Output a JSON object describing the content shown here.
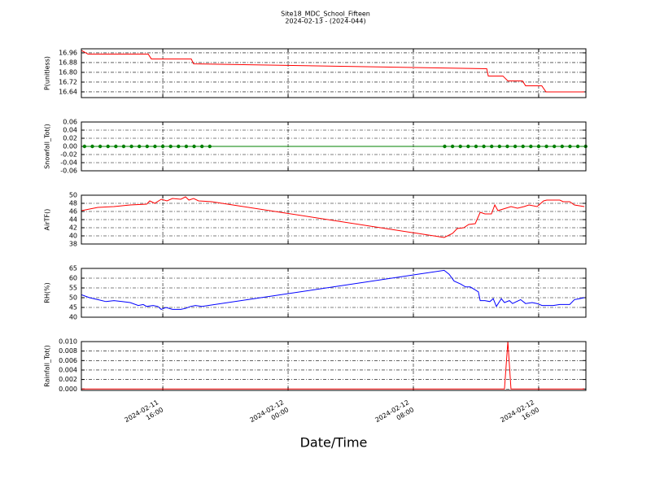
{
  "chart_data": [
    {
      "type": "line",
      "title": "Site18_MDC_School_Fifteen",
      "subtitle": "2024-02-13 - (2024-044)",
      "ylabel": "P(unitless)",
      "color": "#ff0000",
      "grid": true,
      "xlim": [
        "2024-02-11 10:48",
        "2024-02-12 19:01"
      ],
      "xticks": [
        "2024-02-11 16:00",
        "2024-02-12 00:00",
        "2024-02-12 08:00",
        "2024-02-12 16:00"
      ],
      "ylim": [
        16.593,
        16.993
      ],
      "yticks": [
        16.64,
        16.72,
        {
          "value": 16.8,
          "label": "16.80"
        },
        16.88,
        16.96
      ],
      "x": [
        "2024-02-11 10:48",
        "2024-02-11 11:13",
        "2024-02-11 15:04",
        "2024-02-11 15:16",
        "2024-02-11 17:49",
        "2024-02-11 17:58",
        "2024-02-12 12:41",
        "2024-02-12 12:47",
        "2024-02-12 13:43",
        "2024-02-12 14:02",
        "2024-02-12 14:58",
        "2024-02-12 15:10",
        "2024-02-12 16:12",
        "2024-02-12 16:28",
        "2024-02-12 18:55"
      ],
      "values": [
        16.98,
        16.95,
        16.95,
        16.91,
        16.91,
        16.87,
        16.83,
        16.77,
        16.77,
        16.73,
        16.73,
        16.69,
        16.69,
        16.64,
        16.64
      ]
    },
    {
      "type": "line",
      "ylabel": "Snowfall_Tot()",
      "color": "#008000",
      "marker": "o",
      "grid": true,
      "xlim": [
        "2024-02-11 10:48",
        "2024-02-12 19:01"
      ],
      "xticks": [
        "2024-02-11 16:00",
        "2024-02-12 00:00",
        "2024-02-12 08:00",
        "2024-02-12 16:00"
      ],
      "ylim": [
        -0.06,
        0.06
      ],
      "yticks": [
        -0.06,
        -0.04,
        -0.02,
        {
          "value": 0,
          "label": "0.00"
        },
        0.02,
        0.04,
        0.06
      ],
      "x": [
        "2024-02-11 11:00",
        "2024-02-11 11:30",
        "2024-02-11 12:00",
        "2024-02-11 12:30",
        "2024-02-11 13:00",
        "2024-02-11 13:30",
        "2024-02-11 14:00",
        "2024-02-11 14:30",
        "2024-02-11 15:00",
        "2024-02-11 15:30",
        "2024-02-11 16:00",
        "2024-02-11 16:30",
        "2024-02-11 17:00",
        "2024-02-11 17:30",
        "2024-02-11 18:00",
        "2024-02-11 18:30",
        "2024-02-11 19:00",
        "2024-02-12 10:00",
        "2024-02-12 10:30",
        "2024-02-12 11:00",
        "2024-02-12 11:30",
        "2024-02-12 12:00",
        "2024-02-12 12:30",
        "2024-02-12 13:00",
        "2024-02-12 13:30",
        "2024-02-12 14:00",
        "2024-02-12 14:30",
        "2024-02-12 15:00",
        "2024-02-12 15:30",
        "2024-02-12 16:00",
        "2024-02-12 16:30",
        "2024-02-12 17:00",
        "2024-02-12 17:30",
        "2024-02-12 18:00",
        "2024-02-12 18:30",
        "2024-02-12 19:00"
      ],
      "values": [
        0,
        0,
        0,
        0,
        0,
        0,
        0,
        0,
        0,
        0,
        0,
        0,
        0,
        0,
        0,
        0,
        0,
        0,
        0,
        0,
        0,
        0,
        0,
        0,
        0,
        0,
        0,
        0,
        0,
        0,
        0,
        0,
        0,
        0,
        0,
        0
      ]
    },
    {
      "type": "line",
      "ylabel": "AirTF()",
      "color": "#ff0000",
      "grid": true,
      "xlim": [
        "2024-02-11 10:48",
        "2024-02-12 19:01"
      ],
      "xticks": [
        "2024-02-11 16:00",
        "2024-02-12 00:00",
        "2024-02-12 08:00",
        "2024-02-12 16:00"
      ],
      "ylim": [
        38,
        50
      ],
      "yticks": [
        38,
        40,
        42,
        44,
        46,
        48,
        50
      ],
      "x": [
        "2024-02-11 10:48",
        "2024-02-11 11:51",
        "2024-02-11 12:53",
        "2024-02-11 13:55",
        "2024-02-11 14:58",
        "2024-02-11 15:10",
        "2024-02-11 15:29",
        "2024-02-11 15:54",
        "2024-02-11 16:16",
        "2024-02-11 16:37",
        "2024-02-11 17:09",
        "2024-02-11 17:27",
        "2024-02-11 17:40",
        "2024-02-11 17:58",
        "2024-02-11 18:17",
        "2024-02-11 19:07",
        "2024-02-12 09:58",
        "2024-02-12 10:30",
        "2024-02-12 10:48",
        "2024-02-12 11:13",
        "2024-02-12 11:32",
        "2024-02-12 11:57",
        "2024-02-12 12:16",
        "2024-02-12 12:34",
        "2024-02-12 12:59",
        "2024-02-12 13:12",
        "2024-02-12 13:24",
        "2024-02-12 14:14",
        "2024-02-12 14:39",
        "2024-02-12 15:04",
        "2024-02-12 15:23",
        "2024-02-12 15:54",
        "2024-02-12 16:19",
        "2024-02-12 16:31",
        "2024-02-12 17:21",
        "2024-02-12 17:34",
        "2024-02-12 17:59",
        "2024-02-12 18:17",
        "2024-02-12 18:55"
      ],
      "values": [
        46.2,
        47,
        47.2,
        47.6,
        47.8,
        48.6,
        48,
        49,
        48.6,
        49.2,
        49,
        49.6,
        48.8,
        49.2,
        48.6,
        48.4,
        39.6,
        40.6,
        41.8,
        42,
        42.8,
        43,
        45.8,
        45.4,
        45.4,
        47.6,
        46.2,
        47.2,
        46.8,
        47.2,
        47.6,
        47.2,
        48.6,
        48.8,
        48.8,
        48.4,
        48.4,
        47.6,
        47.2
      ]
    },
    {
      "type": "line",
      "ylabel": "RH(%)",
      "color": "#0000ff",
      "grid": true,
      "xlim": [
        "2024-02-11 10:48",
        "2024-02-12 19:01"
      ],
      "xticks": [
        "2024-02-11 16:00",
        "2024-02-12 00:00",
        "2024-02-12 08:00",
        "2024-02-12 16:00"
      ],
      "ylim": [
        40,
        65
      ],
      "yticks": [
        40,
        45,
        50,
        55,
        60,
        65
      ],
      "x": [
        "2024-02-11 10:48",
        "2024-02-11 11:19",
        "2024-02-11 11:51",
        "2024-02-11 12:22",
        "2024-02-11 12:53",
        "2024-02-11 13:24",
        "2024-02-11 13:55",
        "2024-02-11 14:26",
        "2024-02-11 14:45",
        "2024-02-11 14:58",
        "2024-02-11 15:23",
        "2024-02-11 15:41",
        "2024-02-11 15:54",
        "2024-02-11 16:12",
        "2024-02-11 16:37",
        "2024-02-11 17:09",
        "2024-02-11 17:27",
        "2024-02-11 17:46",
        "2024-02-11 18:05",
        "2024-02-11 18:30",
        "2024-02-12 09:58",
        "2024-02-12 10:17",
        "2024-02-12 10:36",
        "2024-02-12 11:01",
        "2024-02-12 11:20",
        "2024-02-12 11:38",
        "2024-02-12 11:57",
        "2024-02-12 12:09",
        "2024-02-12 12:16",
        "2024-02-12 12:34",
        "2024-02-12 12:53",
        "2024-02-12 13:06",
        "2024-02-12 13:18",
        "2024-02-12 13:37",
        "2024-02-12 13:49",
        "2024-02-12 14:08",
        "2024-02-12 14:20",
        "2024-02-12 14:51",
        "2024-02-12 15:10",
        "2024-02-12 15:35",
        "2024-02-12 15:54",
        "2024-02-12 16:13",
        "2024-02-12 16:56",
        "2024-02-12 17:21",
        "2024-02-12 17:59",
        "2024-02-12 18:17",
        "2024-02-12 18:36",
        "2024-02-12 18:55"
      ],
      "values": [
        51.5,
        50,
        49,
        48,
        48.5,
        48,
        47.5,
        46,
        46.5,
        45.5,
        46,
        45.5,
        44,
        45,
        44,
        44,
        44.5,
        45.5,
        46,
        45.5,
        64,
        62,
        58.5,
        57,
        55.5,
        55.5,
        54,
        53,
        48.5,
        48.5,
        48,
        49.5,
        45.5,
        49.5,
        47.5,
        48.5,
        47,
        49,
        47,
        47.5,
        47,
        46,
        46,
        46.5,
        46.5,
        49,
        49.5,
        50
      ]
    },
    {
      "type": "line",
      "ylabel": "Rainfall_Tot()",
      "xlabel": "Date/Time",
      "color": "#ff0000",
      "grid": true,
      "xlim": [
        "2024-02-11 10:48",
        "2024-02-12 19:01"
      ],
      "xticks": [
        {
          "value": "2024-02-11 16:00",
          "label": [
            "2024-02-11",
            "16:00"
          ]
        },
        {
          "value": "2024-02-12 00:00",
          "label": [
            "2024-02-12",
            "00:00"
          ]
        },
        {
          "value": "2024-02-12 08:00",
          "label": [
            "2024-02-12",
            "08:00"
          ]
        },
        {
          "value": "2024-02-12 16:00",
          "label": [
            "2024-02-12",
            "16:00"
          ]
        }
      ],
      "ylim": [
        -0.0003,
        0.01
      ],
      "yticks": [
        {
          "value": 0,
          "label": "0.000"
        },
        0.002,
        0.004,
        0.006,
        0.008,
        {
          "value": 0.01,
          "label": "0.010"
        }
      ],
      "x": [
        "2024-02-11 10:48",
        "2024-02-12 13:49",
        "2024-02-12 14:02",
        "2024-02-12 14:14",
        "2024-02-12 18:55"
      ],
      "values": [
        0,
        0,
        0.01,
        0,
        0
      ]
    }
  ]
}
